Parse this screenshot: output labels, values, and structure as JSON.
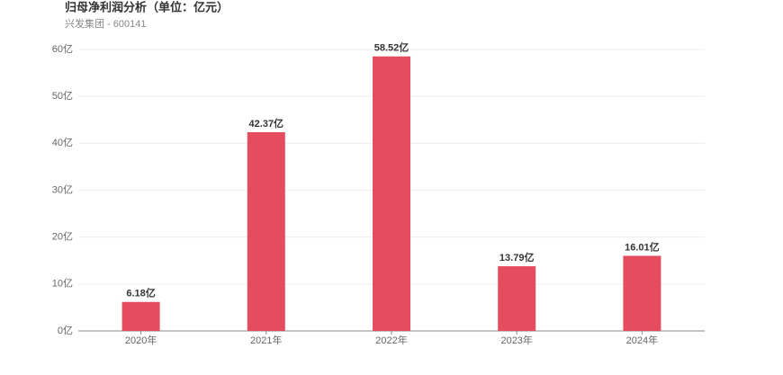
{
  "chart_data": {
    "type": "bar",
    "title": "归母净利润分析（单位：亿元）",
    "subtitle": "兴发集团 - 600141",
    "categories": [
      "2020年",
      "2021年",
      "2022年",
      "2023年",
      "2024年"
    ],
    "values": [
      6.18,
      42.37,
      58.52,
      13.79,
      16.01
    ],
    "value_labels": [
      "6.18亿",
      "42.37亿",
      "58.52亿",
      "13.79亿",
      "16.01亿"
    ],
    "color": "#e54d5f",
    "ylim": [
      0,
      60
    ],
    "yticks": [
      {
        "value": 0,
        "label": "0亿"
      },
      {
        "value": 10,
        "label": "10亿"
      },
      {
        "value": 20,
        "label": "20亿"
      },
      {
        "value": 30,
        "label": "30亿"
      },
      {
        "value": 40,
        "label": "40亿"
      },
      {
        "value": 50,
        "label": "50亿"
      },
      {
        "value": 60,
        "label": "60亿"
      }
    ],
    "grid": true
  }
}
